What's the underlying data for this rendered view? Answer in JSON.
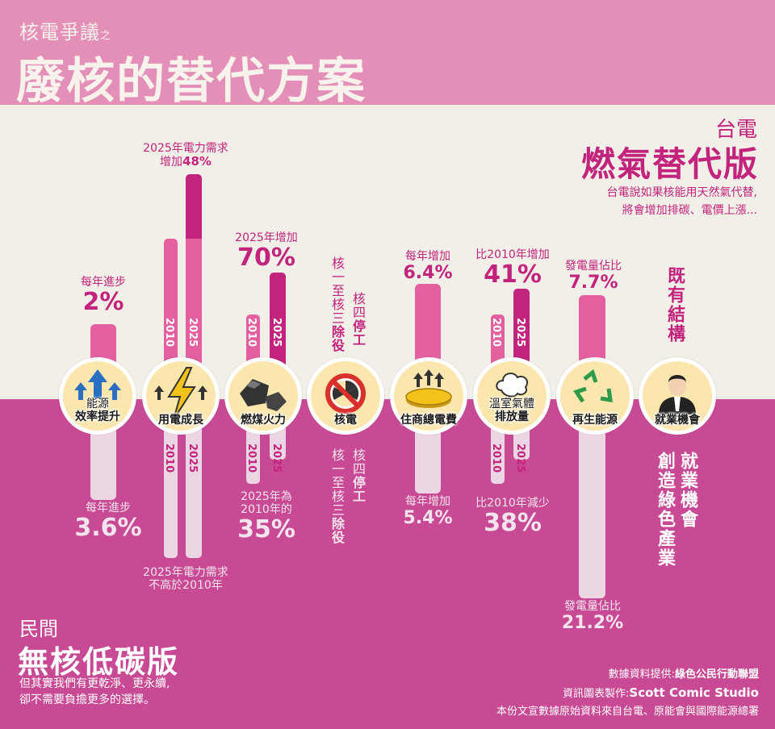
{
  "header": {
    "subtitle": "核電爭議",
    "subtitle_suffix": "之",
    "title": "廢核的替代方案"
  },
  "taipower": {
    "org": "台電",
    "title": "燃氣替代版",
    "desc1": "台電說如果核能用天然氣代替,",
    "desc2": "將會增加排碳、電價上漲..."
  },
  "civil": {
    "org": "民間",
    "title": "無核低碳版",
    "desc1": "但其實我們有更乾淨、更永續,",
    "desc2": "卻不需要負擔更多的選擇。"
  },
  "credits": {
    "line1_prefix": "數據資料提供:",
    "line1_name": "綠色公民行動聯盟",
    "line2_prefix": "資訊圖表製作:",
    "line2_name": "Scott Comic Studio",
    "line3": "本份文宣數據原始資料來自台電、原能會與國際能源總署"
  },
  "categories": [
    {
      "cap1": "能源",
      "cap2": "效率提升",
      "icon": "arrows-up-icon"
    },
    {
      "cap1": "",
      "cap2": "用電成長",
      "icon": "lightning-icon"
    },
    {
      "cap1": "",
      "cap2": "燃煤火力",
      "icon": "coal-icon"
    },
    {
      "cap1": "",
      "cap2": "核電",
      "icon": "no-nuclear-icon"
    },
    {
      "cap1": "",
      "cap2": "住商總電費",
      "icon": "coins-icon"
    },
    {
      "cap1": "溫室氣體",
      "cap2": "排放量",
      "icon": "smoke-cloud-icon"
    },
    {
      "cap1": "",
      "cap2": "再生能源",
      "icon": "recycle-icon"
    },
    {
      "cap1": "",
      "cap2": "就業機會",
      "icon": "person-suit-icon"
    }
  ],
  "annotations": {
    "eff_top_sm": "每年進步",
    "eff_top_big": "2%",
    "eff_bot_sm": "每年進步",
    "eff_bot_big": "3.6%",
    "dem_top_sm1": "2025年電力需求",
    "dem_top_sm2": "增加",
    "dem_top_big": "48%",
    "dem_bot_1": "2025年電力需求",
    "dem_bot_2": "不高於2010年",
    "coal_top_sm": "2025年增加",
    "coal_top_big": "70%",
    "coal_bot_1": "2025年為",
    "coal_bot_2": "2010年的",
    "coal_bot_big": "35%",
    "nuc_top_a1": "核一至核三",
    "nuc_top_a2": "除役",
    "nuc_top_b1": "核四",
    "nuc_top_b2": "停工",
    "nuc_bot_a1": "核一至核三",
    "nuc_bot_a2": "除役",
    "nuc_bot_b1": "核四",
    "nuc_bot_b2": "停工",
    "bill_top_sm": "每年增加",
    "bill_top_big": "6.4%",
    "bill_bot_sm": "每年增加",
    "bill_bot_big": "5.4%",
    "ghg_top_sm": "比2010年增加",
    "ghg_top_big": "41%",
    "ghg_bot_sm": "比2010年減少",
    "ghg_bot_big": "38%",
    "ren_top_sm": "發電量佔比",
    "ren_top_big": "7.7%",
    "ren_bot_sm": "發電量佔比",
    "ren_bot_big": "21.2%",
    "job_top": "既有結構",
    "job_bot_a": "就業機會",
    "job_bot_b": "創造綠色產業",
    "year_2010": "2010",
    "year_2025": "2025"
  },
  "colors": {
    "accent": "#c2237c",
    "bar_pink": "#e35f9f",
    "bar_dark": "#c2237c",
    "bar_light": "#ecd6e4",
    "circle": "#fbe7ae"
  },
  "chart_data": {
    "type": "bar",
    "categories": [
      "能源效率提升",
      "用電成長",
      "燃煤火力",
      "核電",
      "住商總電費",
      "溫室氣體排放量",
      "再生能源",
      "就業機會"
    ],
    "series": [
      {
        "name": "燃氣替代版",
        "values": [
          "2%",
          "48%",
          "70%",
          null,
          "6.4%",
          "41%",
          "7.7%",
          null
        ]
      },
      {
        "name": "無核低碳版",
        "values": [
          "3.6%",
          null,
          "35%",
          null,
          "5.4%",
          "38%",
          "21.2%",
          null
        ]
      }
    ]
  }
}
